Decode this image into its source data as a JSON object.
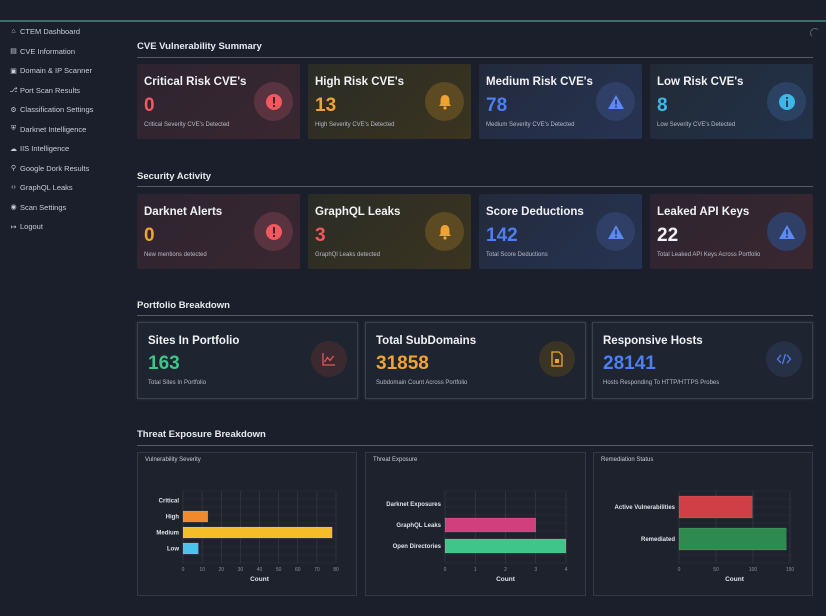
{
  "sidebar": {
    "items": [
      {
        "label": "CTEM Dashboard",
        "icon": "home-icon"
      },
      {
        "label": "CVE Information",
        "icon": "document-icon"
      },
      {
        "label": "Domain & IP Scanner",
        "icon": "scanner-icon"
      },
      {
        "label": "Port Scan Results",
        "icon": "port-icon"
      },
      {
        "label": "Classification Settings",
        "icon": "gear-icon"
      },
      {
        "label": "Darknet Intelligence",
        "icon": "shield-icon"
      },
      {
        "label": "IIS Intelligence",
        "icon": "cloud-icon"
      },
      {
        "label": "Google Dork Results",
        "icon": "search-icon"
      },
      {
        "label": "GraphQL Leaks",
        "icon": "code-icon"
      },
      {
        "label": "Scan Settings",
        "icon": "settings-icon"
      },
      {
        "label": "Logout",
        "icon": "logout-icon"
      }
    ]
  },
  "sections": {
    "cve": "CVE Vulnerability Summary",
    "activity": "Security Activity",
    "portfolio": "Portfolio Breakdown",
    "threat": "Threat Exposure Breakdown"
  },
  "cve_cards": [
    {
      "title": "Critical Risk CVE's",
      "value": "0",
      "subtitle": "Critical Severity CVE's Detected",
      "color": "#f2585d"
    },
    {
      "title": "High Risk CVE's",
      "value": "13",
      "subtitle": "High Severity CVE's Detected",
      "color": "#f0a332"
    },
    {
      "title": "Medium Risk CVE's",
      "value": "78",
      "subtitle": "Medium Severity CVE's Detected",
      "color": "#4d7ff2"
    },
    {
      "title": "Low Risk CVE's",
      "value": "8",
      "subtitle": "Low Severity CVE's Detected",
      "color": "#3db8e6"
    }
  ],
  "activity_cards": [
    {
      "title": "Darknet Alerts",
      "value": "0",
      "subtitle": "New mentions detected",
      "color": "#f0a332"
    },
    {
      "title": "GraphQL Leaks",
      "value": "3",
      "subtitle": "GraphQl Leaks detected",
      "color": "#f2585d"
    },
    {
      "title": "Score Deductions",
      "value": "142",
      "subtitle": "Total Score Deductions",
      "color": "#4d7ff2"
    },
    {
      "title": "Leaked API Keys",
      "value": "22",
      "subtitle": "Total Leaked API Keys Across Portfolio",
      "color": "#f1f2f5"
    }
  ],
  "portfolio_cards": [
    {
      "title": "Sites In Portfolio",
      "value": "163",
      "subtitle": "Total Sites In Portfolio",
      "color": "#3fc48a"
    },
    {
      "title": "Total SubDomains",
      "value": "31858",
      "subtitle": "Subdomain Count Across Portfolio",
      "color": "#f0a332"
    },
    {
      "title": "Responsive Hosts",
      "value": "28141",
      "subtitle": "Hosts Responding To HTTP/HTTPS Probes",
      "color": "#4d7ff2"
    }
  ],
  "chart_data": [
    {
      "type": "bar",
      "orientation": "horizontal",
      "title": "Vulnerability Severity",
      "categories": [
        "Critical",
        "High",
        "Medium",
        "Low"
      ],
      "values": [
        0,
        13,
        78,
        8
      ],
      "colors": [
        "#e8474f",
        "#f08a2c",
        "#f5bd27",
        "#4cc2ec"
      ],
      "xlabel": "Count",
      "xlim": [
        0,
        80
      ],
      "xticks": [
        0,
        10,
        20,
        30,
        40,
        50,
        60,
        70,
        80
      ]
    },
    {
      "type": "bar",
      "orientation": "horizontal",
      "title": "Threat Exposure",
      "categories": [
        "Darknet Exposures",
        "GraphQL Leaks",
        "Open Directories"
      ],
      "values": [
        0,
        3,
        4
      ],
      "colors": [
        "#7a5bd6",
        "#d13f7d",
        "#3fc48a"
      ],
      "xlabel": "Count",
      "xlim": [
        0,
        4
      ],
      "xticks": [
        0,
        1,
        2,
        3,
        4
      ]
    },
    {
      "type": "bar",
      "orientation": "horizontal",
      "title": "Remediation Status",
      "categories": [
        "Active Vulnerabilities",
        "Remediated"
      ],
      "values": [
        99,
        145
      ],
      "colors": [
        "#d13f46",
        "#2f8a4f"
      ],
      "xlabel": "Count",
      "xlim": [
        0,
        150
      ],
      "xticks": [
        0,
        50,
        100,
        150
      ]
    }
  ]
}
